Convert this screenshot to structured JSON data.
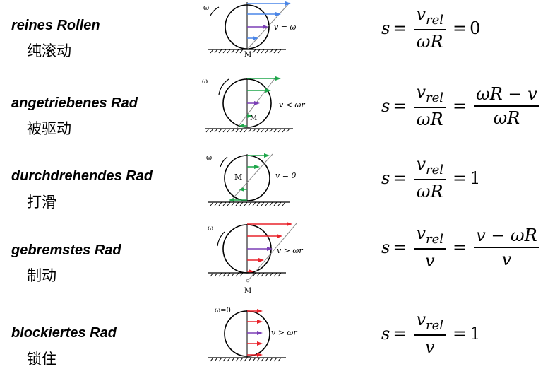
{
  "rows": [
    {
      "label_de": "reines Rollen",
      "label_zh": "纯滚动",
      "omega_label": "ω",
      "contact_label": "M",
      "condition": "v = ωr",
      "formula": {
        "lhs": "s",
        "num_main": "v",
        "num_sub": "rel",
        "den": "ωR",
        "mid": "",
        "result": "0"
      }
    },
    {
      "label_de": "angetriebenes Rad",
      "label_zh": "被驱动",
      "omega_label": "ω",
      "contact_label": "M",
      "condition": "v < ωr",
      "formula": {
        "lhs": "s",
        "num_main": "v",
        "num_sub": "rel",
        "den": "ωR",
        "mid_num": "ωR − v",
        "mid_den": "ωR"
      }
    },
    {
      "label_de": "durchdrehendes Rad",
      "label_zh": "打滑",
      "omega_label": "ω",
      "contact_label": "M",
      "condition": "v = 0",
      "formula": {
        "lhs": "s",
        "num_main": "v",
        "num_sub": "rel",
        "den": "ωR",
        "result": "1"
      }
    },
    {
      "label_de": "gebremstes Rad",
      "label_zh": "制动",
      "omega_label": "ω",
      "contact_label": "M",
      "condition": "v > ωr",
      "formula": {
        "lhs": "s",
        "num_main": "v",
        "num_sub": "rel",
        "den": "v",
        "mid_num": "v − ωR",
        "mid_den": "v"
      }
    },
    {
      "label_de": "blockiertes Rad",
      "label_zh": "锁住",
      "omega_label": "ω=0",
      "condition": "v > ωr",
      "formula": {
        "lhs": "s",
        "num_main": "v",
        "num_sub": "rel",
        "den": "v",
        "result": "1"
      }
    }
  ],
  "colors": {
    "blue": "#4a86e8",
    "green": "#1ea64a",
    "red": "#e8232b",
    "purple": "#7b3fb5",
    "gray": "#888888"
  }
}
